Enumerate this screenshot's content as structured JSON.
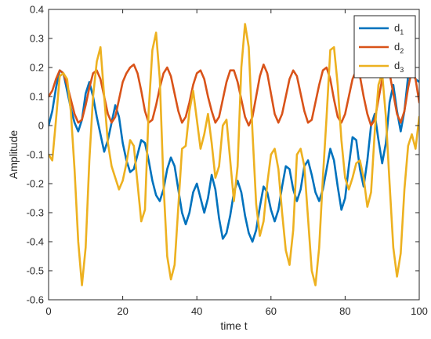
{
  "chart_data": {
    "type": "line",
    "xlabel": "time t",
    "ylabel": "Amplitude",
    "xlim": [
      0,
      100
    ],
    "ylim": [
      -0.6,
      0.4
    ],
    "xticks": [
      "0",
      "20",
      "40",
      "60",
      "80",
      "100"
    ],
    "yticks": [
      "-0.6",
      "-0.5",
      "-0.4",
      "-0.3",
      "-0.2",
      "-0.1",
      "0",
      "0.1",
      "0.2",
      "0.3",
      "0.4"
    ],
    "grid": false,
    "legend_position": "top-right",
    "series": [
      {
        "name": "d",
        "subscript": "1",
        "color": "#0072BD",
        "x": [
          0,
          1,
          2,
          3,
          4,
          5,
          6,
          7,
          8,
          9,
          10,
          11,
          12,
          13,
          14,
          15,
          16,
          17,
          18,
          19,
          20,
          21,
          22,
          23,
          24,
          25,
          26,
          27,
          28,
          29,
          30,
          31,
          32,
          33,
          34,
          35,
          36,
          37,
          38,
          39,
          40,
          41,
          42,
          43,
          44,
          45,
          46,
          47,
          48,
          49,
          50,
          51,
          52,
          53,
          54,
          55,
          56,
          57,
          58,
          59,
          60,
          61,
          62,
          63,
          64,
          65,
          66,
          67,
          68,
          69,
          70,
          71,
          72,
          73,
          74,
          75,
          76,
          77,
          78,
          79,
          80,
          81,
          82,
          83,
          84,
          85,
          86,
          87,
          88,
          89,
          90,
          91,
          92,
          93,
          94,
          95,
          96,
          97,
          98,
          99,
          100
        ],
        "y": [
          0.0,
          0.05,
          0.13,
          0.19,
          0.18,
          0.12,
          0.06,
          0.01,
          -0.02,
          0.02,
          0.11,
          0.15,
          0.1,
          0.03,
          -0.03,
          -0.09,
          -0.05,
          0.01,
          0.07,
          0.03,
          -0.06,
          -0.12,
          -0.16,
          -0.15,
          -0.1,
          -0.05,
          -0.06,
          -0.12,
          -0.19,
          -0.24,
          -0.26,
          -0.22,
          -0.15,
          -0.11,
          -0.14,
          -0.22,
          -0.3,
          -0.34,
          -0.3,
          -0.23,
          -0.2,
          -0.25,
          -0.3,
          -0.25,
          -0.17,
          -0.22,
          -0.32,
          -0.39,
          -0.37,
          -0.31,
          -0.23,
          -0.19,
          -0.23,
          -0.31,
          -0.37,
          -0.4,
          -0.36,
          -0.28,
          -0.21,
          -0.23,
          -0.29,
          -0.33,
          -0.29,
          -0.21,
          -0.14,
          -0.15,
          -0.22,
          -0.26,
          -0.22,
          -0.14,
          -0.12,
          -0.17,
          -0.23,
          -0.26,
          -0.22,
          -0.15,
          -0.08,
          -0.12,
          -0.21,
          -0.29,
          -0.25,
          -0.14,
          -0.04,
          -0.05,
          -0.15,
          -0.21,
          -0.12,
          0.0,
          0.04,
          -0.05,
          -0.13,
          -0.06,
          0.08,
          0.14,
          0.05,
          -0.02,
          0.05,
          0.17,
          0.19,
          0.16,
          0.15
        ]
      },
      {
        "name": "d",
        "subscript": "2",
        "color": "#D95319",
        "x": [
          0,
          1,
          2,
          3,
          4,
          5,
          6,
          7,
          8,
          9,
          10,
          11,
          12,
          13,
          14,
          15,
          16,
          17,
          18,
          19,
          20,
          21,
          22,
          23,
          24,
          25,
          26,
          27,
          28,
          29,
          30,
          31,
          32,
          33,
          34,
          35,
          36,
          37,
          38,
          39,
          40,
          41,
          42,
          43,
          44,
          45,
          46,
          47,
          48,
          49,
          50,
          51,
          52,
          53,
          54,
          55,
          56,
          57,
          58,
          59,
          60,
          61,
          62,
          63,
          64,
          65,
          66,
          67,
          68,
          69,
          70,
          71,
          72,
          73,
          74,
          75,
          76,
          77,
          78,
          79,
          80,
          81,
          82,
          83,
          84,
          85,
          86,
          87,
          88,
          89,
          90,
          91,
          92,
          93,
          94,
          95,
          96,
          97,
          98,
          99,
          100
        ],
        "y": [
          0.1,
          0.12,
          0.16,
          0.19,
          0.18,
          0.14,
          0.09,
          0.04,
          0.01,
          0.02,
          0.07,
          0.13,
          0.18,
          0.19,
          0.16,
          0.1,
          0.04,
          0.01,
          0.03,
          0.09,
          0.15,
          0.18,
          0.2,
          0.21,
          0.18,
          0.12,
          0.05,
          0.01,
          0.02,
          0.07,
          0.13,
          0.18,
          0.2,
          0.17,
          0.11,
          0.05,
          0.01,
          0.03,
          0.08,
          0.14,
          0.18,
          0.19,
          0.16,
          0.1,
          0.05,
          0.01,
          0.03,
          0.09,
          0.15,
          0.19,
          0.19,
          0.15,
          0.09,
          0.03,
          0.0,
          0.03,
          0.1,
          0.17,
          0.21,
          0.18,
          0.11,
          0.04,
          0.01,
          0.04,
          0.1,
          0.16,
          0.19,
          0.17,
          0.11,
          0.05,
          0.01,
          0.02,
          0.08,
          0.14,
          0.19,
          0.2,
          0.16,
          0.09,
          0.03,
          0.01,
          0.04,
          0.1,
          0.16,
          0.19,
          0.17,
          0.1,
          0.04,
          0.0,
          0.02,
          0.09,
          0.16,
          0.2,
          0.18,
          0.11,
          0.04,
          0.01,
          0.05,
          0.13,
          0.19,
          0.16,
          0.08
        ]
      },
      {
        "name": "d",
        "subscript": "3",
        "color": "#EDB120",
        "x": [
          0,
          1,
          2,
          3,
          4,
          5,
          6,
          7,
          8,
          9,
          10,
          11,
          12,
          13,
          14,
          15,
          16,
          17,
          18,
          19,
          20,
          21,
          22,
          23,
          24,
          25,
          26,
          27,
          28,
          29,
          30,
          31,
          32,
          33,
          34,
          35,
          36,
          37,
          38,
          39,
          40,
          41,
          42,
          43,
          44,
          45,
          46,
          47,
          48,
          49,
          50,
          51,
          52,
          53,
          54,
          55,
          56,
          57,
          58,
          59,
          60,
          61,
          62,
          63,
          64,
          65,
          66,
          67,
          68,
          69,
          70,
          71,
          72,
          73,
          74,
          75,
          76,
          77,
          78,
          79,
          80,
          81,
          82,
          83,
          84,
          85,
          86,
          87,
          88,
          89,
          90,
          91,
          92,
          93,
          94,
          95,
          96,
          97,
          98,
          99,
          100
        ],
        "y": [
          -0.1,
          -0.12,
          0.02,
          0.17,
          0.18,
          0.16,
          0.05,
          -0.15,
          -0.4,
          -0.55,
          -0.42,
          -0.12,
          0.1,
          0.22,
          0.27,
          0.1,
          -0.06,
          -0.14,
          -0.18,
          -0.22,
          -0.19,
          -0.13,
          -0.05,
          -0.07,
          -0.2,
          -0.33,
          -0.29,
          0.05,
          0.26,
          0.32,
          0.16,
          -0.2,
          -0.45,
          -0.53,
          -0.48,
          -0.28,
          -0.08,
          -0.07,
          0.05,
          0.12,
          0.02,
          -0.08,
          -0.03,
          0.04,
          -0.06,
          -0.18,
          -0.14,
          0.0,
          0.02,
          -0.12,
          -0.26,
          -0.14,
          0.2,
          0.35,
          0.27,
          -0.02,
          -0.27,
          -0.38,
          -0.33,
          -0.2,
          -0.1,
          -0.08,
          -0.15,
          -0.3,
          -0.43,
          -0.48,
          -0.36,
          -0.1,
          -0.08,
          -0.14,
          -0.32,
          -0.5,
          -0.55,
          -0.42,
          -0.18,
          0.03,
          0.26,
          0.27,
          0.14,
          -0.05,
          -0.18,
          -0.22,
          -0.18,
          -0.13,
          -0.12,
          -0.18,
          -0.28,
          -0.23,
          -0.02,
          0.14,
          0.18,
          0.03,
          -0.2,
          -0.42,
          -0.52,
          -0.44,
          -0.22,
          -0.07,
          -0.03,
          -0.08,
          0.03
        ]
      }
    ]
  }
}
